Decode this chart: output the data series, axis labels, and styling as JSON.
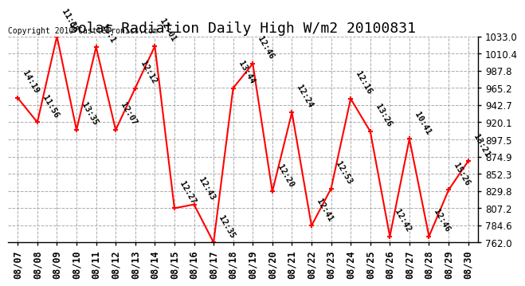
{
  "title": "Solar Radiation Daily High W/m2 20100831",
  "copyright": "Copyright 2010 CastleTronics.com",
  "ylim": [
    762.0,
    1033.0
  ],
  "yticks": [
    762.0,
    784.6,
    807.2,
    829.8,
    852.3,
    874.9,
    897.5,
    920.1,
    942.7,
    965.2,
    987.8,
    1010.4,
    1033.0
  ],
  "dates": [
    "08/07",
    "08/08",
    "08/09",
    "08/10",
    "08/11",
    "08/12",
    "08/13",
    "08/14",
    "08/15",
    "08/16",
    "08/17",
    "08/18",
    "08/19",
    "08/20",
    "08/21",
    "08/22",
    "08/23",
    "08/24",
    "08/25",
    "08/26",
    "08/27",
    "08/28",
    "08/29",
    "08/30"
  ],
  "values": [
    952,
    920,
    1033,
    910,
    1019,
    910,
    965,
    1020,
    807,
    812,
    762,
    965,
    997,
    829,
    933,
    784,
    833,
    951,
    908,
    770,
    898,
    770,
    831,
    869
  ],
  "labels": [
    "14:19",
    "11:56",
    "11:38",
    "13:35",
    "13:1",
    "12:07",
    "12:12",
    "12:01",
    "12:27",
    "12:43",
    "12:35",
    "13:44",
    "12:46",
    "12:20",
    "12:24",
    "12:41",
    "12:53",
    "12:16",
    "13:26",
    "12:42",
    "10:41",
    "12:46",
    "15:26",
    "13:21"
  ],
  "line_color": "#FF0000",
  "marker_color": "#FF0000",
  "bg_color": "#FFFFFF",
  "grid_color": "#AAAAAA",
  "title_fontsize": 13,
  "label_fontsize": 7.5,
  "copyright_fontsize": 7,
  "tick_fontsize": 8.5
}
